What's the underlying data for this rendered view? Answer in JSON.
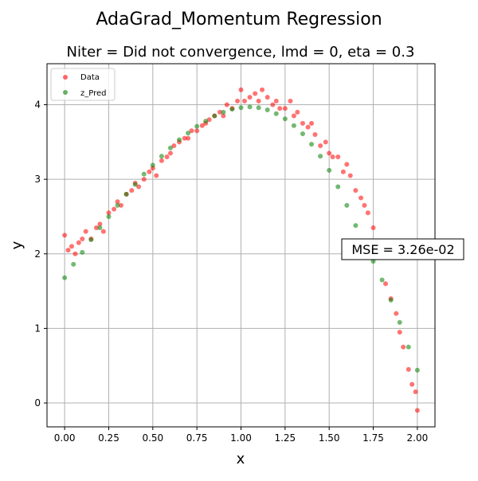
{
  "figure": {
    "suptitle": "AdaGrad_Momentum Regression",
    "title": "Niter = Did not convergence, lmd = 0, eta = 0.3",
    "xlabel": "x",
    "ylabel": "y",
    "annotation": "MSE = 3.26e-02"
  },
  "legend": {
    "location": "upper-left",
    "entries": [
      {
        "label": "Data",
        "color": "#ff0000"
      },
      {
        "label": "z_Pred",
        "color": "#008000"
      }
    ]
  },
  "chart_data": {
    "type": "scatter",
    "xlim": [
      -0.1,
      2.1
    ],
    "ylim": [
      -0.32,
      4.55
    ],
    "xticks": [
      "0.00",
      "0.25",
      "0.50",
      "0.75",
      "1.00",
      "1.25",
      "1.50",
      "1.75",
      "2.00"
    ],
    "yticks": [
      "0",
      "1",
      "2",
      "3",
      "4"
    ],
    "grid": true,
    "series": [
      {
        "name": "Data",
        "color": "#ff0000",
        "points": [
          [
            0.0,
            2.25
          ],
          [
            0.02,
            2.05
          ],
          [
            0.04,
            2.1
          ],
          [
            0.06,
            2.0
          ],
          [
            0.08,
            2.15
          ],
          [
            0.1,
            2.2
          ],
          [
            0.12,
            2.3
          ],
          [
            0.15,
            2.2
          ],
          [
            0.18,
            2.35
          ],
          [
            0.2,
            2.4
          ],
          [
            0.22,
            2.3
          ],
          [
            0.25,
            2.55
          ],
          [
            0.28,
            2.6
          ],
          [
            0.3,
            2.7
          ],
          [
            0.32,
            2.65
          ],
          [
            0.35,
            2.8
          ],
          [
            0.38,
            2.85
          ],
          [
            0.4,
            2.95
          ],
          [
            0.42,
            2.9
          ],
          [
            0.45,
            3.0
          ],
          [
            0.48,
            3.1
          ],
          [
            0.5,
            3.15
          ],
          [
            0.52,
            3.05
          ],
          [
            0.55,
            3.25
          ],
          [
            0.58,
            3.3
          ],
          [
            0.6,
            3.35
          ],
          [
            0.62,
            3.45
          ],
          [
            0.65,
            3.5
          ],
          [
            0.68,
            3.55
          ],
          [
            0.7,
            3.55
          ],
          [
            0.72,
            3.65
          ],
          [
            0.75,
            3.65
          ],
          [
            0.78,
            3.72
          ],
          [
            0.8,
            3.75
          ],
          [
            0.82,
            3.8
          ],
          [
            0.85,
            3.85
          ],
          [
            0.88,
            3.9
          ],
          [
            0.9,
            3.85
          ],
          [
            0.92,
            4.0
          ],
          [
            0.95,
            3.95
          ],
          [
            0.98,
            4.05
          ],
          [
            1.0,
            4.2
          ],
          [
            1.02,
            4.05
          ],
          [
            1.05,
            4.1
          ],
          [
            1.08,
            4.15
          ],
          [
            1.1,
            4.05
          ],
          [
            1.12,
            4.2
          ],
          [
            1.15,
            4.1
          ],
          [
            1.18,
            4.0
          ],
          [
            1.2,
            4.05
          ],
          [
            1.22,
            3.95
          ],
          [
            1.25,
            3.95
          ],
          [
            1.28,
            4.05
          ],
          [
            1.3,
            3.85
          ],
          [
            1.32,
            3.9
          ],
          [
            1.35,
            3.75
          ],
          [
            1.38,
            3.7
          ],
          [
            1.4,
            3.75
          ],
          [
            1.42,
            3.6
          ],
          [
            1.45,
            3.45
          ],
          [
            1.48,
            3.5
          ],
          [
            1.5,
            3.35
          ],
          [
            1.52,
            3.3
          ],
          [
            1.55,
            3.3
          ],
          [
            1.58,
            3.1
          ],
          [
            1.6,
            3.2
          ],
          [
            1.62,
            3.05
          ],
          [
            1.65,
            2.85
          ],
          [
            1.68,
            2.75
          ],
          [
            1.7,
            2.65
          ],
          [
            1.72,
            2.55
          ],
          [
            1.75,
            2.35
          ],
          [
            1.78,
            2.1
          ],
          [
            1.8,
            1.95
          ],
          [
            1.82,
            1.6
          ],
          [
            1.85,
            1.4
          ],
          [
            1.88,
            1.2
          ],
          [
            1.9,
            0.95
          ],
          [
            1.92,
            0.75
          ],
          [
            1.95,
            0.45
          ],
          [
            1.97,
            0.25
          ],
          [
            1.99,
            0.15
          ],
          [
            2.0,
            -0.1
          ]
        ]
      },
      {
        "name": "z_Pred",
        "color": "#008000",
        "points": [
          [
            0.0,
            1.68
          ],
          [
            0.05,
            1.86
          ],
          [
            0.1,
            2.02
          ],
          [
            0.15,
            2.19
          ],
          [
            0.2,
            2.35
          ],
          [
            0.25,
            2.5
          ],
          [
            0.3,
            2.65
          ],
          [
            0.35,
            2.8
          ],
          [
            0.4,
            2.93
          ],
          [
            0.45,
            3.07
          ],
          [
            0.5,
            3.19
          ],
          [
            0.55,
            3.31
          ],
          [
            0.6,
            3.42
          ],
          [
            0.65,
            3.53
          ],
          [
            0.7,
            3.62
          ],
          [
            0.75,
            3.71
          ],
          [
            0.8,
            3.78
          ],
          [
            0.85,
            3.85
          ],
          [
            0.9,
            3.9
          ],
          [
            0.95,
            3.94
          ],
          [
            1.0,
            3.96
          ],
          [
            1.05,
            3.97
          ],
          [
            1.1,
            3.96
          ],
          [
            1.15,
            3.93
          ],
          [
            1.2,
            3.88
          ],
          [
            1.25,
            3.81
          ],
          [
            1.3,
            3.72
          ],
          [
            1.35,
            3.61
          ],
          [
            1.4,
            3.47
          ],
          [
            1.45,
            3.31
          ],
          [
            1.5,
            3.12
          ],
          [
            1.55,
            2.9
          ],
          [
            1.6,
            2.65
          ],
          [
            1.65,
            2.38
          ],
          [
            1.7,
            2.13
          ],
          [
            1.75,
            1.9
          ],
          [
            1.8,
            1.65
          ],
          [
            1.85,
            1.38
          ],
          [
            1.9,
            1.08
          ],
          [
            1.95,
            0.75
          ],
          [
            2.0,
            0.44
          ]
        ]
      }
    ]
  }
}
